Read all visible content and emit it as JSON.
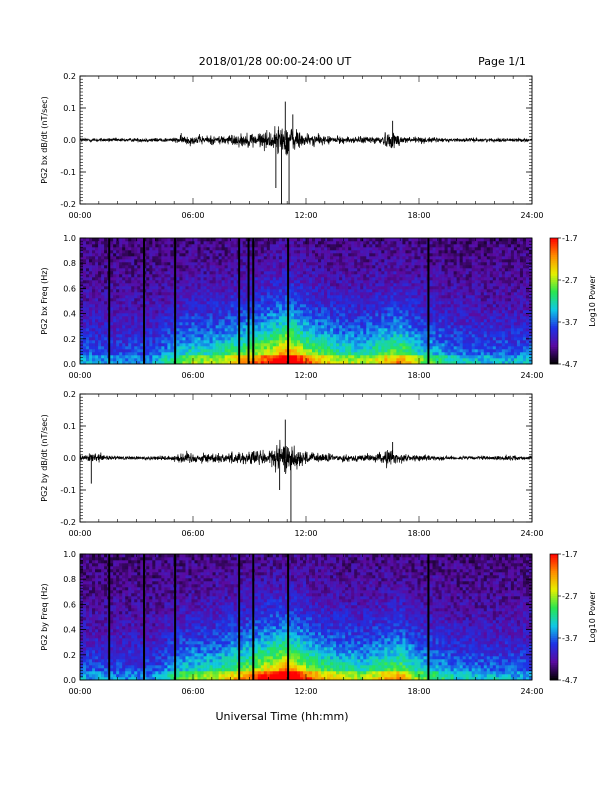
{
  "header": {
    "title": "2018/01/28  00:00-24:00 UT",
    "page": "Page 1/1"
  },
  "footer": {
    "xlabel": "Universal Time (hh:mm)"
  },
  "colors": {
    "trace": "#000000",
    "spectrogram_background": "#1a0030",
    "colormap": [
      "#000000",
      "#5a0aa0",
      "#1e32e6",
      "#10c8e6",
      "#28e650",
      "#e6f000",
      "#ff8c00",
      "#ff0000"
    ]
  },
  "chart_data": [
    {
      "type": "line",
      "panel": "bx_waveform",
      "ylabel": "PG2 bx dB/dt (nT/sec)",
      "x_tick_labels": [
        "00:00",
        "06:00",
        "12:00",
        "18:00",
        "24:00"
      ],
      "y_tick_labels": [
        "0.2",
        "0.1",
        "0.0",
        "-0.1",
        "-0.2"
      ],
      "xlim": [
        0,
        24
      ],
      "ylim": [
        -0.2,
        0.2
      ],
      "x_unit": "hours UT",
      "envelope_hours": [
        0,
        1,
        2,
        3,
        4,
        5,
        5.5,
        6,
        7,
        8,
        9,
        10,
        10.5,
        11,
        11.5,
        12,
        13,
        14,
        15,
        16,
        16.5,
        17,
        18,
        19,
        20,
        21,
        22,
        23,
        24
      ],
      "envelope_amplitude": [
        0.012,
        0.01,
        0.01,
        0.01,
        0.012,
        0.012,
        0.03,
        0.025,
        0.025,
        0.03,
        0.04,
        0.05,
        0.07,
        0.09,
        0.06,
        0.035,
        0.025,
        0.018,
        0.018,
        0.03,
        0.05,
        0.028,
        0.018,
        0.012,
        0.01,
        0.01,
        0.01,
        0.01,
        0.008
      ],
      "notable_spikes": [
        {
          "x": 10.4,
          "y": -0.15
        },
        {
          "x": 10.7,
          "y": -0.2
        },
        {
          "x": 11.1,
          "y": -0.2
        },
        {
          "x": 10.9,
          "y": 0.12
        },
        {
          "x": 11.3,
          "y": 0.08
        },
        {
          "x": 16.6,
          "y": 0.06
        }
      ]
    },
    {
      "type": "heatmap",
      "panel": "bx_spectrogram",
      "ylabel": "PG2 bx Freq (Hz)",
      "x_tick_labels": [
        "00:00",
        "06:00",
        "12:00",
        "18:00",
        "24:00"
      ],
      "y_tick_labels": [
        "1.0",
        "0.8",
        "0.6",
        "0.4",
        "0.2",
        "0.0"
      ],
      "xlim": [
        0,
        24
      ],
      "ylim": [
        0,
        1.0
      ],
      "colorbar": {
        "label": "Log10 Power",
        "range": [
          -4.7,
          -1.7
        ],
        "tick_labels": [
          "-1.7",
          "-2.7",
          "-3.7",
          "-4.7"
        ]
      },
      "activity_hours": [
        0,
        2,
        4,
        5.2,
        6,
        7,
        8,
        9,
        10,
        11,
        12,
        13,
        14,
        15,
        16,
        17,
        18,
        19,
        20,
        22,
        24
      ],
      "activity_level": [
        0.25,
        0.2,
        0.22,
        0.4,
        0.45,
        0.45,
        0.55,
        0.62,
        0.75,
        0.95,
        0.7,
        0.55,
        0.48,
        0.45,
        0.55,
        0.65,
        0.45,
        0.35,
        0.28,
        0.25,
        0.25
      ],
      "dark_lines_hours": [
        1.55,
        3.4,
        5.05,
        8.45,
        8.95,
        9.2,
        11.05,
        18.5
      ]
    },
    {
      "type": "line",
      "panel": "by_waveform",
      "ylabel": "PG2 by dB/dt (nT/sec)",
      "x_tick_labels": [
        "00:00",
        "06:00",
        "12:00",
        "18:00",
        "24:00"
      ],
      "y_tick_labels": [
        "0.2",
        "0.1",
        "0.0",
        "-0.1",
        "-0.2"
      ],
      "xlim": [
        0,
        24
      ],
      "ylim": [
        -0.2,
        0.2
      ],
      "x_unit": "hours UT",
      "envelope_hours": [
        0,
        0.5,
        1,
        2,
        3,
        4,
        5,
        5.5,
        6,
        7,
        8,
        9,
        10,
        10.5,
        11,
        11.5,
        12,
        13,
        14,
        15,
        16,
        16.5,
        17,
        18,
        19,
        20,
        22,
        23,
        24
      ],
      "envelope_amplitude": [
        0.015,
        0.02,
        0.025,
        0.01,
        0.01,
        0.012,
        0.015,
        0.035,
        0.03,
        0.025,
        0.03,
        0.04,
        0.05,
        0.07,
        0.085,
        0.06,
        0.035,
        0.025,
        0.018,
        0.018,
        0.03,
        0.05,
        0.025,
        0.015,
        0.012,
        0.01,
        0.01,
        0.015,
        0.008
      ],
      "notable_spikes": [
        {
          "x": 0.6,
          "y": -0.08
        },
        {
          "x": 10.9,
          "y": 0.12
        },
        {
          "x": 11.2,
          "y": -0.2
        },
        {
          "x": 10.6,
          "y": -0.1
        },
        {
          "x": 16.6,
          "y": 0.05
        }
      ]
    },
    {
      "type": "heatmap",
      "panel": "by_spectrogram",
      "ylabel": "PG2 by Freq (Hz)",
      "x_tick_labels": [
        "00:00",
        "06:00",
        "12:00",
        "18:00",
        "24:00"
      ],
      "y_tick_labels": [
        "1.0",
        "0.8",
        "0.6",
        "0.4",
        "0.2",
        "0.0"
      ],
      "xlim": [
        0,
        24
      ],
      "ylim": [
        0,
        1.0
      ],
      "colorbar": {
        "label": "Log10 Power",
        "range": [
          -4.7,
          -1.7
        ],
        "tick_labels": [
          "-1.7",
          "-2.7",
          "-3.7",
          "-4.7"
        ]
      },
      "activity_hours": [
        0,
        2,
        4,
        5.2,
        6,
        7,
        8,
        9,
        10,
        11,
        12,
        13,
        14,
        15,
        16,
        17,
        18,
        19,
        20,
        22,
        24
      ],
      "activity_level": [
        0.22,
        0.2,
        0.2,
        0.38,
        0.42,
        0.45,
        0.55,
        0.65,
        0.78,
        0.95,
        0.7,
        0.55,
        0.5,
        0.45,
        0.55,
        0.62,
        0.42,
        0.35,
        0.28,
        0.25,
        0.22
      ],
      "dark_lines_hours": [
        1.55,
        3.4,
        5.05,
        8.45,
        9.2,
        11.05,
        18.5
      ]
    }
  ]
}
